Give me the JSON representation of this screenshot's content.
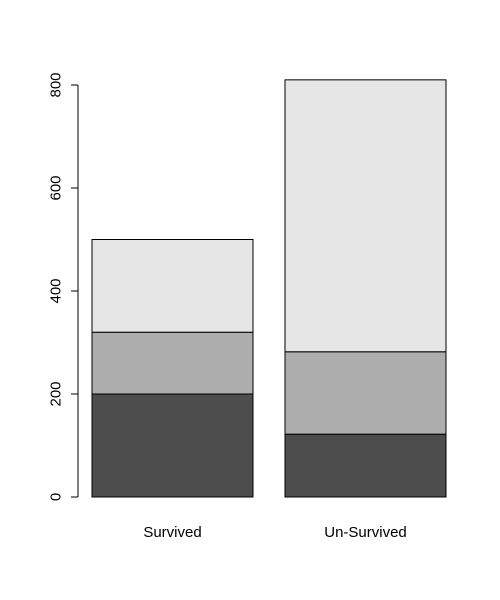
{
  "chart_data": {
    "type": "bar",
    "stacked": true,
    "categories": [
      "Survived",
      "Un-Survived"
    ],
    "series": [
      {
        "values": [
          200,
          122
        ],
        "color": "#4d4d4d"
      },
      {
        "values": [
          120,
          160
        ],
        "color": "#aeaeae"
      },
      {
        "values": [
          180,
          528
        ],
        "color": "#e6e6e6"
      }
    ],
    "title": "",
    "xlabel": "",
    "ylabel": "",
    "ylim": [
      0,
      800
    ],
    "yticks": [
      0,
      200,
      400,
      600,
      800
    ],
    "ytick_labels": [
      "0",
      "200",
      "400",
      "600",
      "800"
    ],
    "grid": false,
    "legend": "none"
  }
}
